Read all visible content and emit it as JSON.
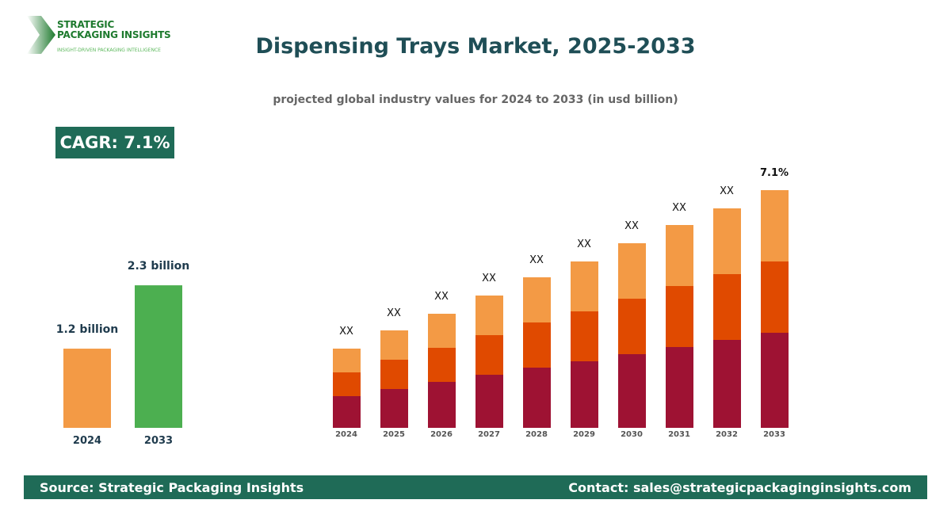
{
  "logo": {
    "line1": "STRATEGIC",
    "line2": "PACKAGING INSIGHTS",
    "tagline": "INSIGHT-DRIVEN PACKAGING INTELLIGENCE"
  },
  "header": {
    "title": "Dispensing Trays Market, 2025-2033",
    "subtitle": "projected global industry values for 2024 to 2033 (in usd billion)"
  },
  "cagr_badge": "CAGR: 7.1%",
  "footer": {
    "source": "Source: Strategic Packaging Insights",
    "contact": "Contact: sales@strategicpackaginginsights.com"
  },
  "chart_data": [
    {
      "type": "bar",
      "categories": [
        "2024",
        "2033"
      ],
      "values": [
        1.2,
        2.3
      ],
      "data_labels": [
        "1.2 billion",
        "2.3 billion"
      ],
      "colors": [
        "#f39a45",
        "#4caf50"
      ],
      "unit": "billion"
    },
    {
      "type": "bar",
      "stacked": true,
      "categories": [
        "2024",
        "2025",
        "2026",
        "2027",
        "2028",
        "2029",
        "2030",
        "2031",
        "2032",
        "2033"
      ],
      "series": [
        {
          "color": "#9e1233",
          "values": [
            40,
            49,
            58,
            67,
            76,
            84,
            93,
            102,
            111,
            120
          ]
        },
        {
          "color": "#e04a00",
          "values": [
            30,
            37,
            43,
            50,
            57,
            63,
            70,
            77,
            83,
            90
          ]
        },
        {
          "color": "#f39a45",
          "values": [
            30,
            37,
            43,
            50,
            57,
            63,
            70,
            77,
            83,
            90
          ]
        }
      ],
      "data_labels": [
        "XX",
        "XX",
        "XX",
        "XX",
        "XX",
        "XX",
        "XX",
        "XX",
        "XX",
        "7.1%"
      ],
      "note": "relative values; no y-axis printed",
      "grid": false,
      "legend": "none"
    }
  ]
}
